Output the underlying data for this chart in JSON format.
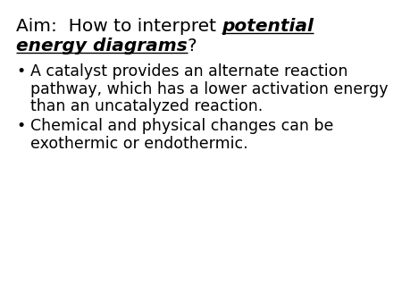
{
  "background_color": "#ffffff",
  "text_color": "#000000",
  "title_plain": "Aim:  How to interpret ",
  "title_bold1": "potential",
  "title_bold2": "energy diagrams",
  "title_end": "?",
  "bullet1_lines": [
    "A catalyst provides an alternate reaction",
    "pathway, which has a lower activation energy",
    "than an uncatalyzed reaction."
  ],
  "bullet2_lines": [
    "Chemical and physical changes can be",
    "exothermic or endothermic."
  ],
  "font_size_title": 14.5,
  "font_size_body": 12.5
}
